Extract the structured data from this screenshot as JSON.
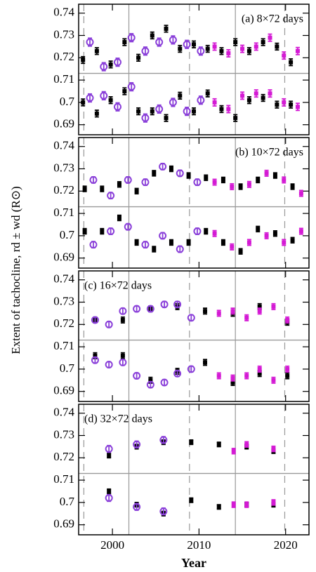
{
  "y_label": "Extent of tachocline,  rd ± wd  (R⊙)",
  "chart_data": [
    {
      "type": "scatter",
      "title": "(a) 8×72 days",
      "title_position": "right",
      "xlim": [
        1996.1,
        2022.7
      ],
      "xticks": [
        2000,
        2010,
        2020
      ],
      "ylim": [
        0.6855,
        0.744
      ],
      "yticks": [
        0.69,
        0.7,
        0.71,
        0.72,
        0.73,
        0.74
      ],
      "hline": 0.713,
      "vlines_dashed": [
        1996.7,
        2008.9,
        2019.9
      ],
      "vlines_solid": [
        2001.9,
        2014.2
      ],
      "series": [
        {
          "color": "#000000",
          "marker": "square",
          "error": 0.0015,
          "x": [
            1996.6,
            1998.2,
            1999.8,
            2001.4,
            2003.0,
            2004.6,
            2006.2,
            2007.8,
            2009.4,
            2011.0,
            2012.6,
            2014.2,
            2015.8,
            2017.4,
            2019.0,
            2020.6
          ],
          "upper": [
            0.719,
            0.723,
            0.717,
            0.727,
            0.72,
            0.73,
            0.733,
            0.724,
            0.726,
            0.724,
            0.723,
            0.727,
            0.723,
            0.727,
            0.725,
            0.718
          ],
          "lower": [
            0.7,
            0.695,
            0.701,
            0.705,
            0.696,
            0.696,
            0.693,
            0.703,
            0.696,
            0.704,
            0.697,
            0.693,
            0.701,
            0.702,
            0.699,
            0.699
          ]
        },
        {
          "color": "#8a3fd9",
          "marker": "circle",
          "error": 0.0018,
          "x": [
            1997.4,
            1999.0,
            2000.6,
            2002.2,
            2003.8,
            2005.4,
            2007.0,
            2008.6,
            2010.2
          ],
          "upper": [
            0.727,
            0.716,
            0.718,
            0.729,
            0.723,
            0.727,
            0.728,
            0.726,
            0.723
          ],
          "lower": [
            0.702,
            0.703,
            0.698,
            0.707,
            0.693,
            0.697,
            0.7,
            0.696,
            0.701
          ]
        },
        {
          "color": "#d41ad4",
          "marker": "square",
          "error": 0.0016,
          "x": [
            2011.8,
            2013.4,
            2015.0,
            2016.6,
            2018.2,
            2019.8,
            2021.4
          ],
          "upper": [
            0.725,
            0.722,
            0.724,
            0.725,
            0.729,
            0.721,
            0.723
          ],
          "lower": [
            0.7,
            0.697,
            0.703,
            0.704,
            0.704,
            0.7,
            0.698
          ]
        }
      ]
    },
    {
      "type": "scatter",
      "title": "(b) 10×72 days",
      "title_position": "right",
      "xlim": [
        1996.1,
        2022.7
      ],
      "xticks": [
        2000,
        2010,
        2020
      ],
      "ylim": [
        0.6855,
        0.744
      ],
      "yticks": [
        0.69,
        0.7,
        0.71,
        0.72,
        0.73,
        0.74
      ],
      "hline": 0.713,
      "vlines_dashed": [
        1996.7,
        2008.9,
        2019.9
      ],
      "vlines_solid": [
        2001.9,
        2014.2
      ],
      "series": [
        {
          "color": "#000000",
          "marker": "square",
          "error": 0.0012,
          "x": [
            1996.8,
            1998.8,
            2000.8,
            2002.8,
            2004.8,
            2006.8,
            2008.8,
            2010.8,
            2012.8,
            2014.8,
            2016.8,
            2018.8,
            2020.8
          ],
          "upper": [
            0.721,
            0.721,
            0.723,
            0.72,
            0.728,
            0.73,
            0.727,
            0.726,
            0.725,
            0.722,
            0.725,
            0.727,
            0.722
          ],
          "lower": [
            0.702,
            0.702,
            0.708,
            0.697,
            0.694,
            0.697,
            0.697,
            0.702,
            0.697,
            0.693,
            0.703,
            0.701,
            0.698
          ]
        },
        {
          "color": "#8a3fd9",
          "marker": "circle",
          "error": 0.0014,
          "x": [
            1997.8,
            1999.8,
            2001.8,
            2003.8,
            2005.8,
            2007.8,
            2009.8
          ],
          "upper": [
            0.725,
            0.718,
            0.725,
            0.724,
            0.731,
            0.728,
            0.724
          ],
          "lower": [
            0.696,
            0.702,
            0.704,
            0.696,
            0.7,
            0.694,
            0.702
          ]
        },
        {
          "color": "#d41ad4",
          "marker": "square",
          "error": 0.0013,
          "x": [
            2011.8,
            2013.8,
            2015.8,
            2017.8,
            2019.8,
            2021.8
          ],
          "upper": [
            0.724,
            0.722,
            0.723,
            0.728,
            0.725,
            0.719
          ],
          "lower": [
            0.701,
            0.695,
            0.697,
            0.7,
            0.697,
            0.702
          ]
        }
      ]
    },
    {
      "type": "scatter",
      "title": "(c) 16×72 days",
      "title_position": "left",
      "xlim": [
        1996.1,
        2022.7
      ],
      "xticks": [
        2000,
        2010,
        2020
      ],
      "ylim": [
        0.6855,
        0.744
      ],
      "yticks": [
        0.69,
        0.7,
        0.71,
        0.72,
        0.73,
        0.74
      ],
      "hline": 0.713,
      "vlines_dashed": [
        1996.7,
        2008.9,
        2019.9
      ],
      "vlines_solid": [
        2001.9,
        2014.2
      ],
      "series": [
        {
          "color": "#000000",
          "marker": "square",
          "error": 0.0013,
          "x": [
            1998.0,
            2001.2,
            2004.4,
            2007.5,
            2010.7,
            2013.9,
            2017.0,
            2020.2
          ],
          "upper": [
            0.722,
            0.722,
            0.727,
            0.728,
            0.726,
            0.725,
            0.728,
            0.721
          ],
          "lower": [
            0.706,
            0.706,
            0.695,
            0.699,
            0.703,
            0.694,
            0.698,
            0.697
          ]
        },
        {
          "color": "#8a3fd9",
          "marker": "circle",
          "error": 0.0013,
          "x": [
            1998.0,
            1999.6,
            2001.2,
            2002.8,
            2004.4,
            2006.0,
            2007.5,
            2009.1
          ],
          "upper": [
            0.722,
            0.72,
            0.726,
            0.727,
            0.727,
            0.729,
            0.729,
            0.723
          ],
          "lower": [
            0.704,
            0.702,
            0.703,
            0.697,
            0.693,
            0.694,
            0.698,
            0.7
          ]
        },
        {
          "color": "#d41ad4",
          "marker": "square",
          "error": 0.0013,
          "x": [
            2012.3,
            2013.9,
            2015.5,
            2017.0,
            2018.6,
            2020.2
          ],
          "upper": [
            0.725,
            0.726,
            0.723,
            0.726,
            0.728,
            0.722
          ],
          "lower": [
            0.697,
            0.696,
            0.697,
            0.7,
            0.695,
            0.7
          ]
        }
      ]
    },
    {
      "type": "scatter",
      "title": "(d) 32×72 days",
      "title_position": "left",
      "x_label": "Year",
      "xlim": [
        1996.1,
        2022.7
      ],
      "xticks": [
        2000,
        2010,
        2020
      ],
      "ylim": [
        0.6855,
        0.744
      ],
      "yticks": [
        0.69,
        0.7,
        0.71,
        0.72,
        0.73,
        0.74
      ],
      "hline": 0.713,
      "vlines_dashed": [
        1996.7,
        2008.9,
        2019.9
      ],
      "vlines_solid": [
        2001.9,
        2014.2
      ],
      "series": [
        {
          "color": "#000000",
          "marker": "square",
          "error": 0.001,
          "x": [
            1999.6,
            2002.8,
            2005.9,
            2009.1,
            2012.3,
            2015.5,
            2018.6
          ],
          "upper": [
            0.721,
            0.725,
            0.727,
            0.727,
            0.726,
            0.725,
            0.723
          ],
          "lower": [
            0.705,
            0.699,
            0.695,
            0.701,
            0.698,
            0.699,
            0.699
          ]
        },
        {
          "color": "#8a3fd9",
          "marker": "circle",
          "error": 0.0015,
          "x": [
            1999.6,
            2002.8,
            2005.9
          ],
          "upper": [
            0.724,
            0.726,
            0.728
          ],
          "lower": [
            0.702,
            0.698,
            0.696
          ]
        },
        {
          "color": "#d41ad4",
          "marker": "square",
          "error": 0.0012,
          "x": [
            2014.0,
            2015.5,
            2018.6
          ],
          "upper": [
            0.723,
            0.726,
            0.724
          ],
          "lower": [
            0.699,
            0.699,
            0.7
          ]
        }
      ]
    }
  ]
}
